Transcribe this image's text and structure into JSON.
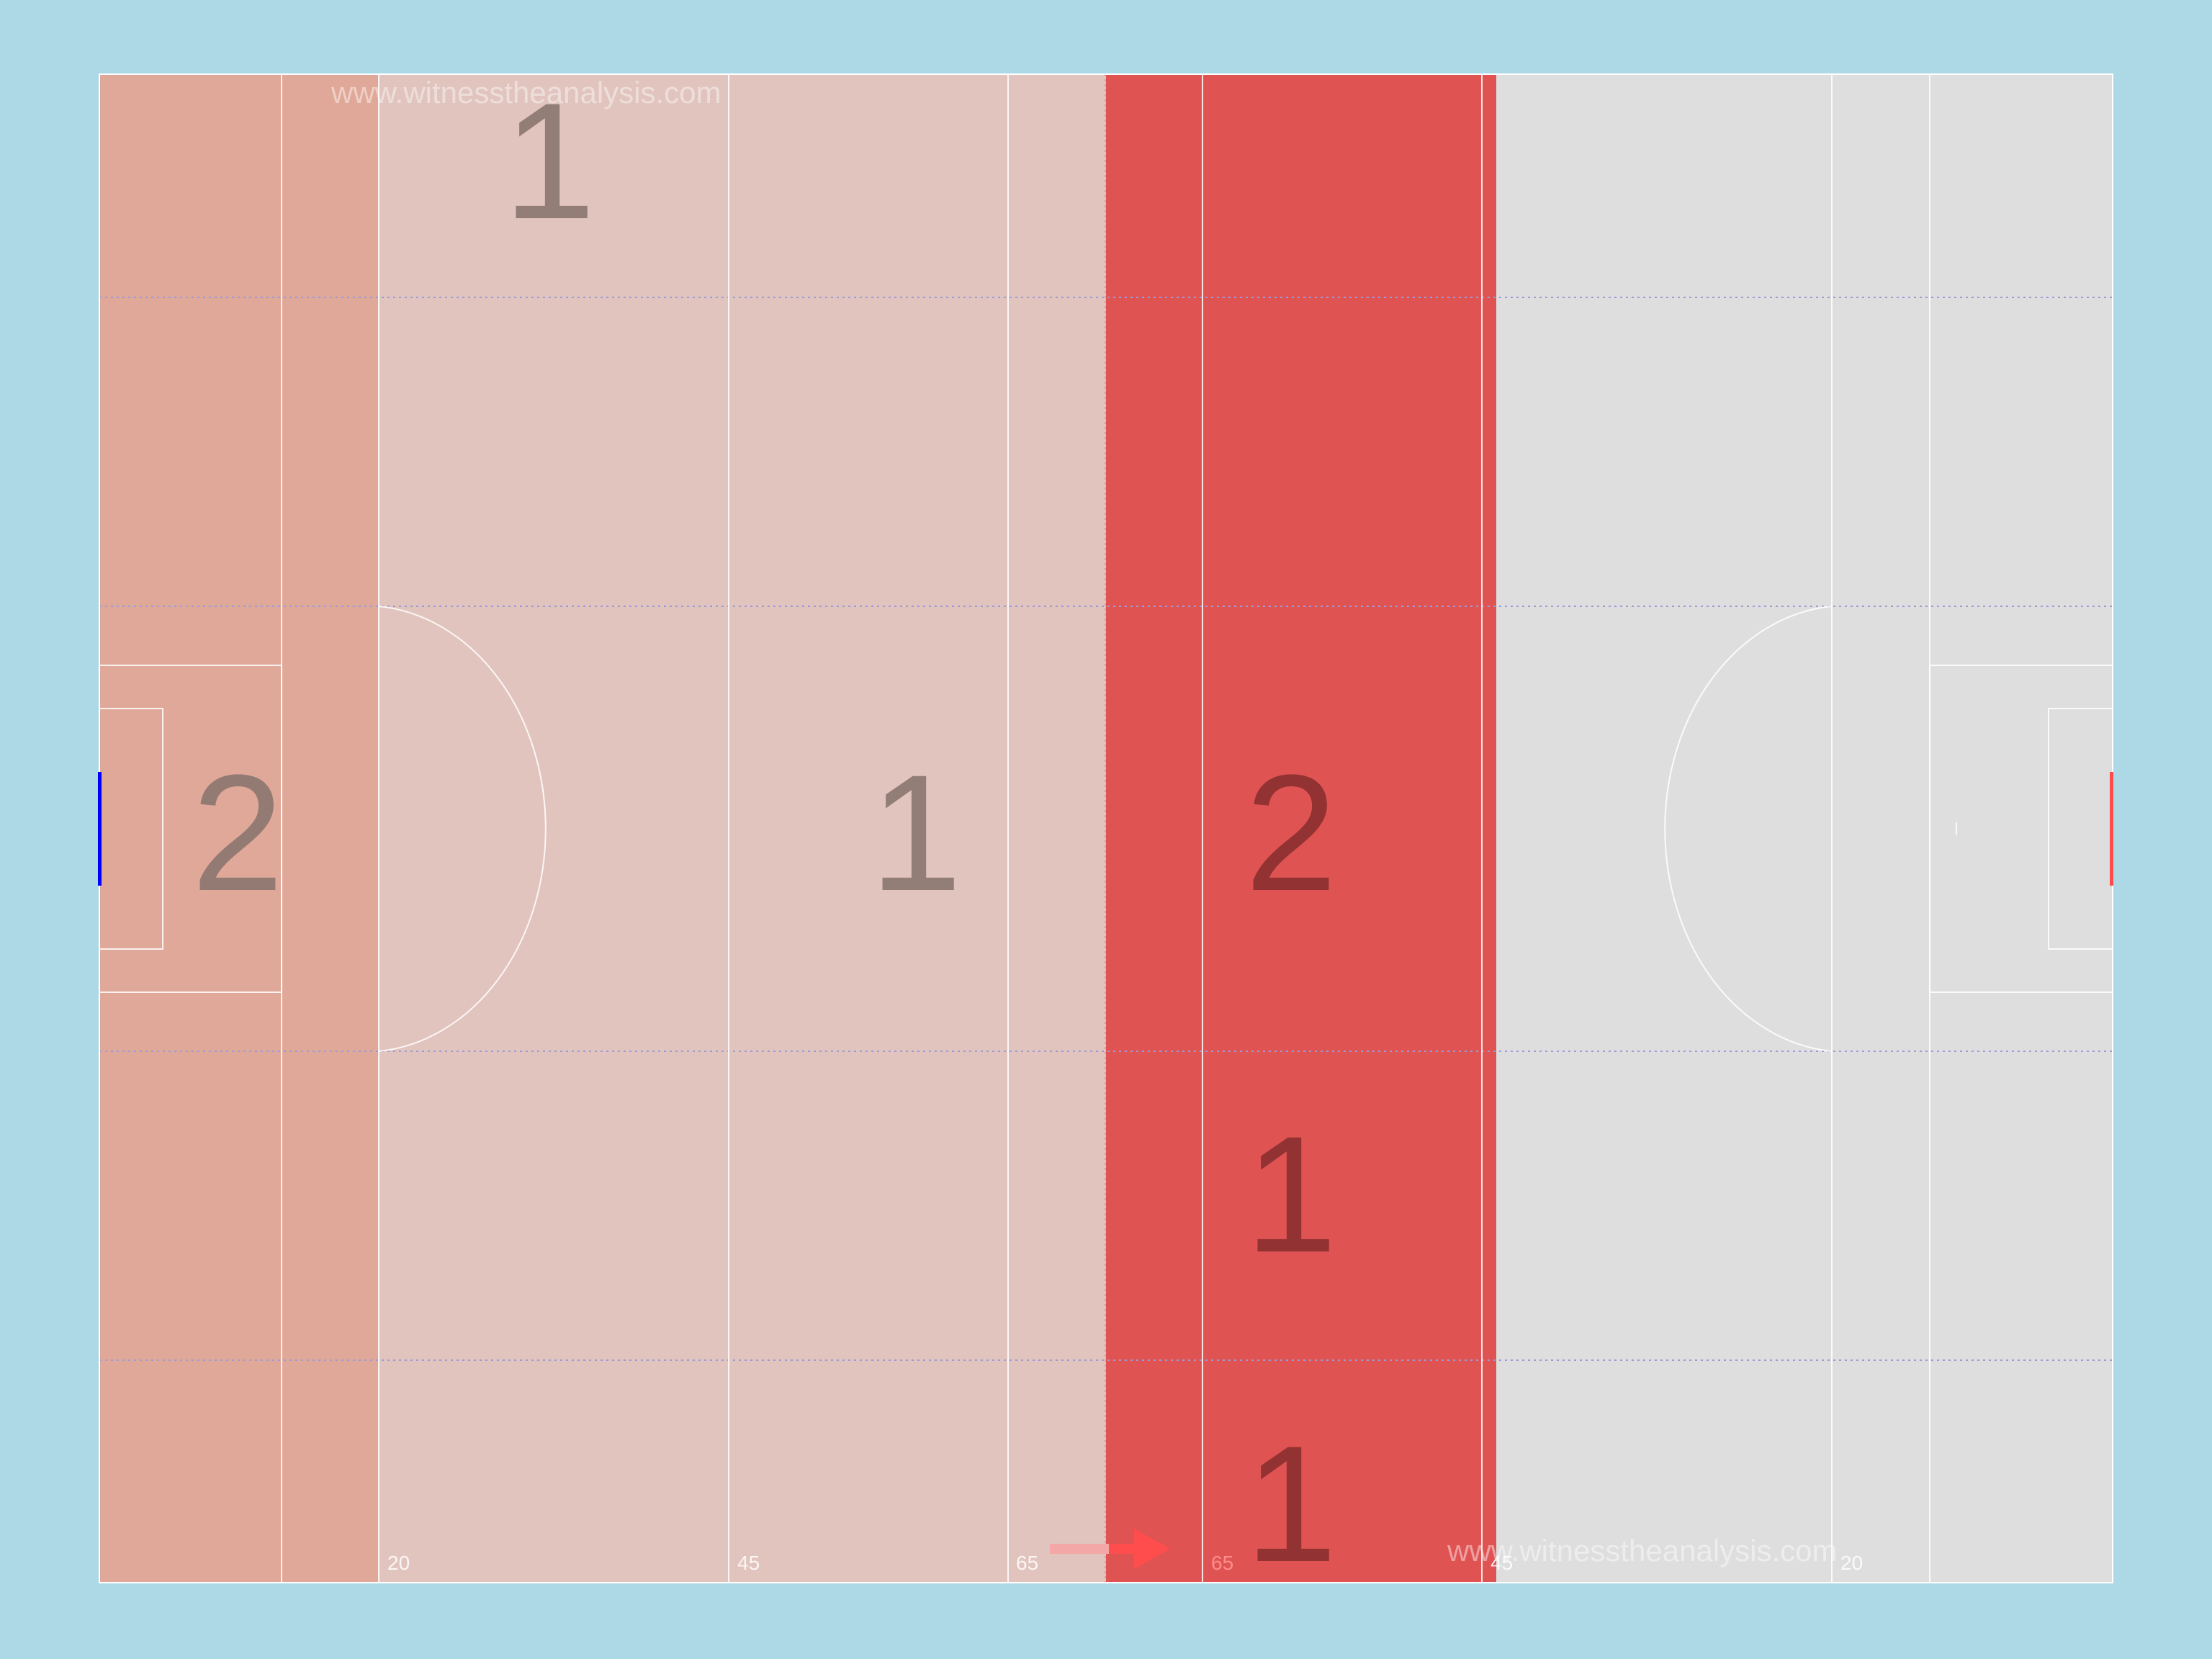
{
  "watermarks": [
    "www.witnesstheanalysis.com",
    "www.witnesstheanalysis.com"
  ],
  "distance_labels": {
    "left_20": "20",
    "left_45": "45",
    "left_65": "65",
    "right_65": "65",
    "right_45": "45",
    "right_20": "20"
  },
  "zone_counts": {
    "top_left_band": "1",
    "middle_goal_area": "2",
    "middle_centre_left": "1",
    "middle_centre_right": "2",
    "lower_centre_right": "1",
    "bottom_centre_right": "1"
  },
  "colors": {
    "background": "#add8e6",
    "pitch_default": "#dedede",
    "zone_light": "#e1c4bd",
    "zone_medium": "#e0a898",
    "zone_strong": "#e05353",
    "count_text": "#8b756f",
    "count_text_dark": "#8a2f2f",
    "left_goal": "#0000ff",
    "right_goal": "#ff4d4d",
    "arrow": "#ff4d4d"
  },
  "chart_data": {
    "type": "heatmap",
    "attack_direction": "left-to-right",
    "column_boundaries_m": [
      0,
      13,
      20,
      45,
      65,
      72,
      100,
      145
    ],
    "row_boundaries": [
      "edge",
      "wing",
      "centre",
      "wing",
      "edge"
    ],
    "cells": [
      {
        "columns": "0-20",
        "row": "centre",
        "value": 2
      },
      {
        "columns": "20-72",
        "row": "top-edge",
        "value": 1
      },
      {
        "columns": "20-72",
        "row": "centre",
        "value": 1
      },
      {
        "columns": "72-100",
        "row": "centre",
        "value": 2
      },
      {
        "columns": "72-100",
        "row": "lower-wing",
        "value": 1
      },
      {
        "columns": "72-100",
        "row": "bottom-edge",
        "value": 1
      }
    ]
  }
}
